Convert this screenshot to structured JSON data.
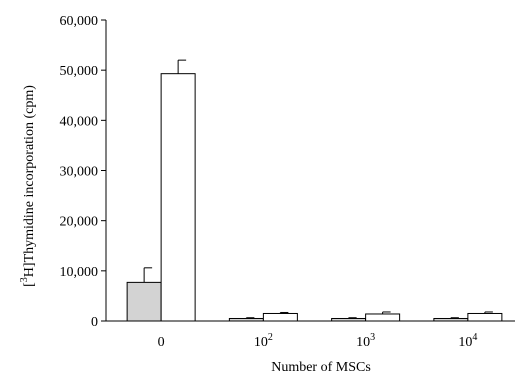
{
  "chart_data": {
    "type": "bar",
    "categories": [
      "0",
      "10^2",
      "10^3",
      "10^4"
    ],
    "category_labels": [
      {
        "base": "0",
        "exp": ""
      },
      {
        "base": "10",
        "exp": "2"
      },
      {
        "base": "10",
        "exp": "3"
      },
      {
        "base": "10",
        "exp": "4"
      }
    ],
    "series": [
      {
        "name": "",
        "color": "#d3d3d3",
        "values": [
          7700,
          500,
          500,
          500
        ],
        "errors": [
          2900,
          150,
          150,
          150
        ]
      },
      {
        "name": "",
        "color": "#ffffff",
        "values": [
          49300,
          1500,
          1400,
          1500
        ],
        "errors": [
          2700,
          200,
          400,
          300
        ]
      }
    ],
    "title": "",
    "xlabel": "Number of MSCs",
    "ylabel_parts": {
      "open": "[",
      "sup": "3",
      "rest": "H]Thymidine incorporation (cpm)"
    },
    "ylim": [
      0,
      60000
    ],
    "yticks": [
      0,
      10000,
      20000,
      30000,
      40000,
      50000,
      60000
    ],
    "ytick_labels": [
      "0",
      "10,000",
      "20,000",
      "30,000",
      "40,000",
      "50,000",
      "60,000"
    ],
    "grid": false,
    "legend": "none"
  }
}
